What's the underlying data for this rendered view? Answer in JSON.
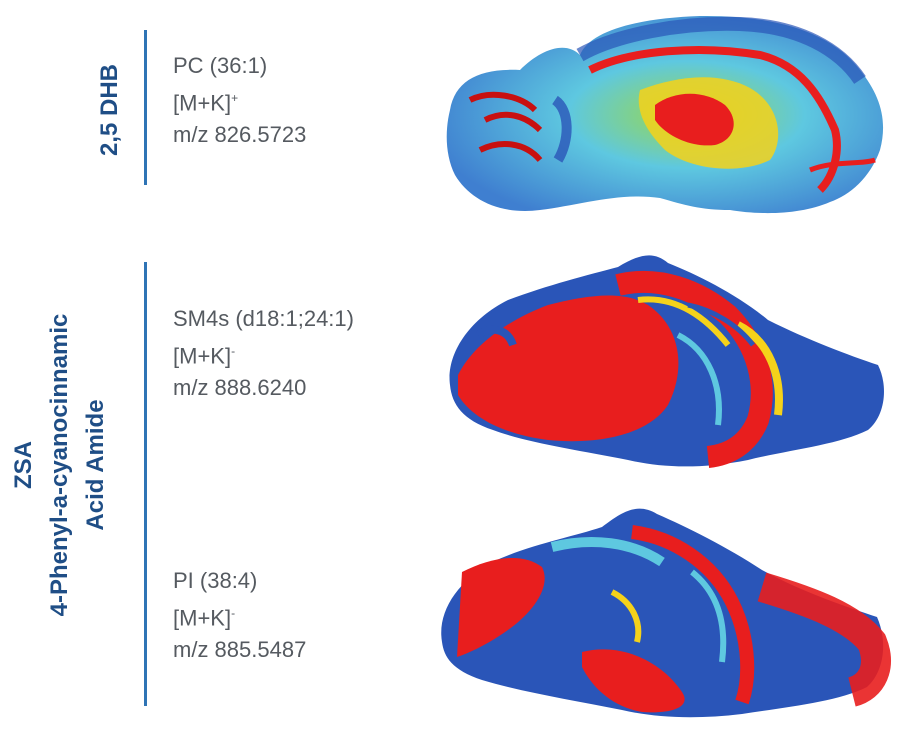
{
  "matrix1": {
    "label": "2,5 DHB"
  },
  "matrix2": {
    "line1": "ZSA",
    "line2": "4-Phenyl-a-cyanocinnamic",
    "line3": "Acid Amide"
  },
  "panels": [
    {
      "lipid": "PC (36:1)",
      "adduct": "[M+K]",
      "charge": "+",
      "mz": "m/z 826.5723"
    },
    {
      "lipid": "SM4s (d18:1;24:1)",
      "adduct": "[M+K]",
      "charge": "-",
      "mz": "m/z 888.6240"
    },
    {
      "lipid": "PI (38:4)",
      "adduct": "[M+K]",
      "charge": "-",
      "mz": "m/z 885.5487"
    }
  ],
  "colors": {
    "label": "#1f4e86",
    "bar": "#2f74b5",
    "low": "#2a55b8",
    "mid": "#5ec8e0",
    "high": "#e81e1e"
  }
}
